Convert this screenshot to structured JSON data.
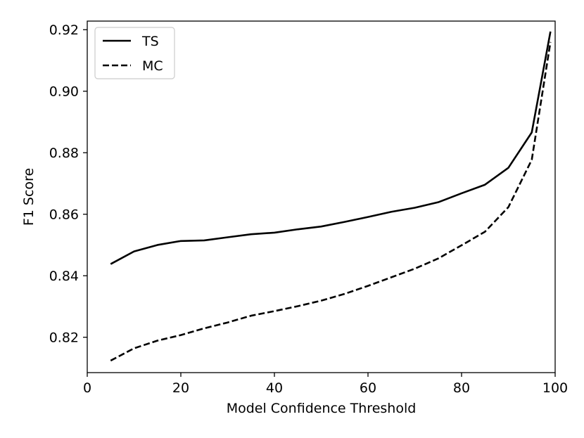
{
  "chart_data": {
    "type": "line",
    "title": "",
    "xlabel": "Model Confidence Threshold",
    "ylabel": "F1 Score",
    "xlim": [
      0,
      100
    ],
    "ylim": [
      0.8085,
      0.9228
    ],
    "x_ticks": [
      0,
      20,
      40,
      60,
      80,
      100
    ],
    "y_ticks": [
      0.82,
      0.84,
      0.86,
      0.88,
      0.9,
      0.92
    ],
    "x_tick_labels": [
      "0",
      "20",
      "40",
      "60",
      "80",
      "100"
    ],
    "y_tick_labels": [
      "0.82",
      "0.84",
      "0.86",
      "0.88",
      "0.90",
      "0.92"
    ],
    "legend_position": "top-left",
    "grid": false,
    "series": [
      {
        "name": "TS",
        "style": "solid",
        "color": "#000000",
        "x": [
          5,
          10,
          15,
          20,
          25,
          30,
          35,
          40,
          45,
          50,
          55,
          60,
          65,
          70,
          75,
          80,
          85,
          90,
          95,
          99
        ],
        "y": [
          0.8438,
          0.8479,
          0.85,
          0.8513,
          0.8515,
          0.8525,
          0.8535,
          0.854,
          0.8551,
          0.856,
          0.8575,
          0.8591,
          0.8608,
          0.8621,
          0.8639,
          0.8668,
          0.8696,
          0.8751,
          0.8866,
          0.9194
        ]
      },
      {
        "name": "MC",
        "style": "dashed",
        "color": "#000000",
        "x": [
          5,
          10,
          15,
          20,
          25,
          30,
          35,
          40,
          45,
          50,
          55,
          60,
          65,
          70,
          75,
          80,
          85,
          90,
          95,
          99
        ],
        "y": [
          0.8124,
          0.8164,
          0.8189,
          0.8207,
          0.8229,
          0.8248,
          0.827,
          0.8285,
          0.8301,
          0.8319,
          0.8341,
          0.8367,
          0.8395,
          0.8423,
          0.8456,
          0.8499,
          0.8543,
          0.8623,
          0.8777,
          0.916
        ]
      }
    ]
  }
}
